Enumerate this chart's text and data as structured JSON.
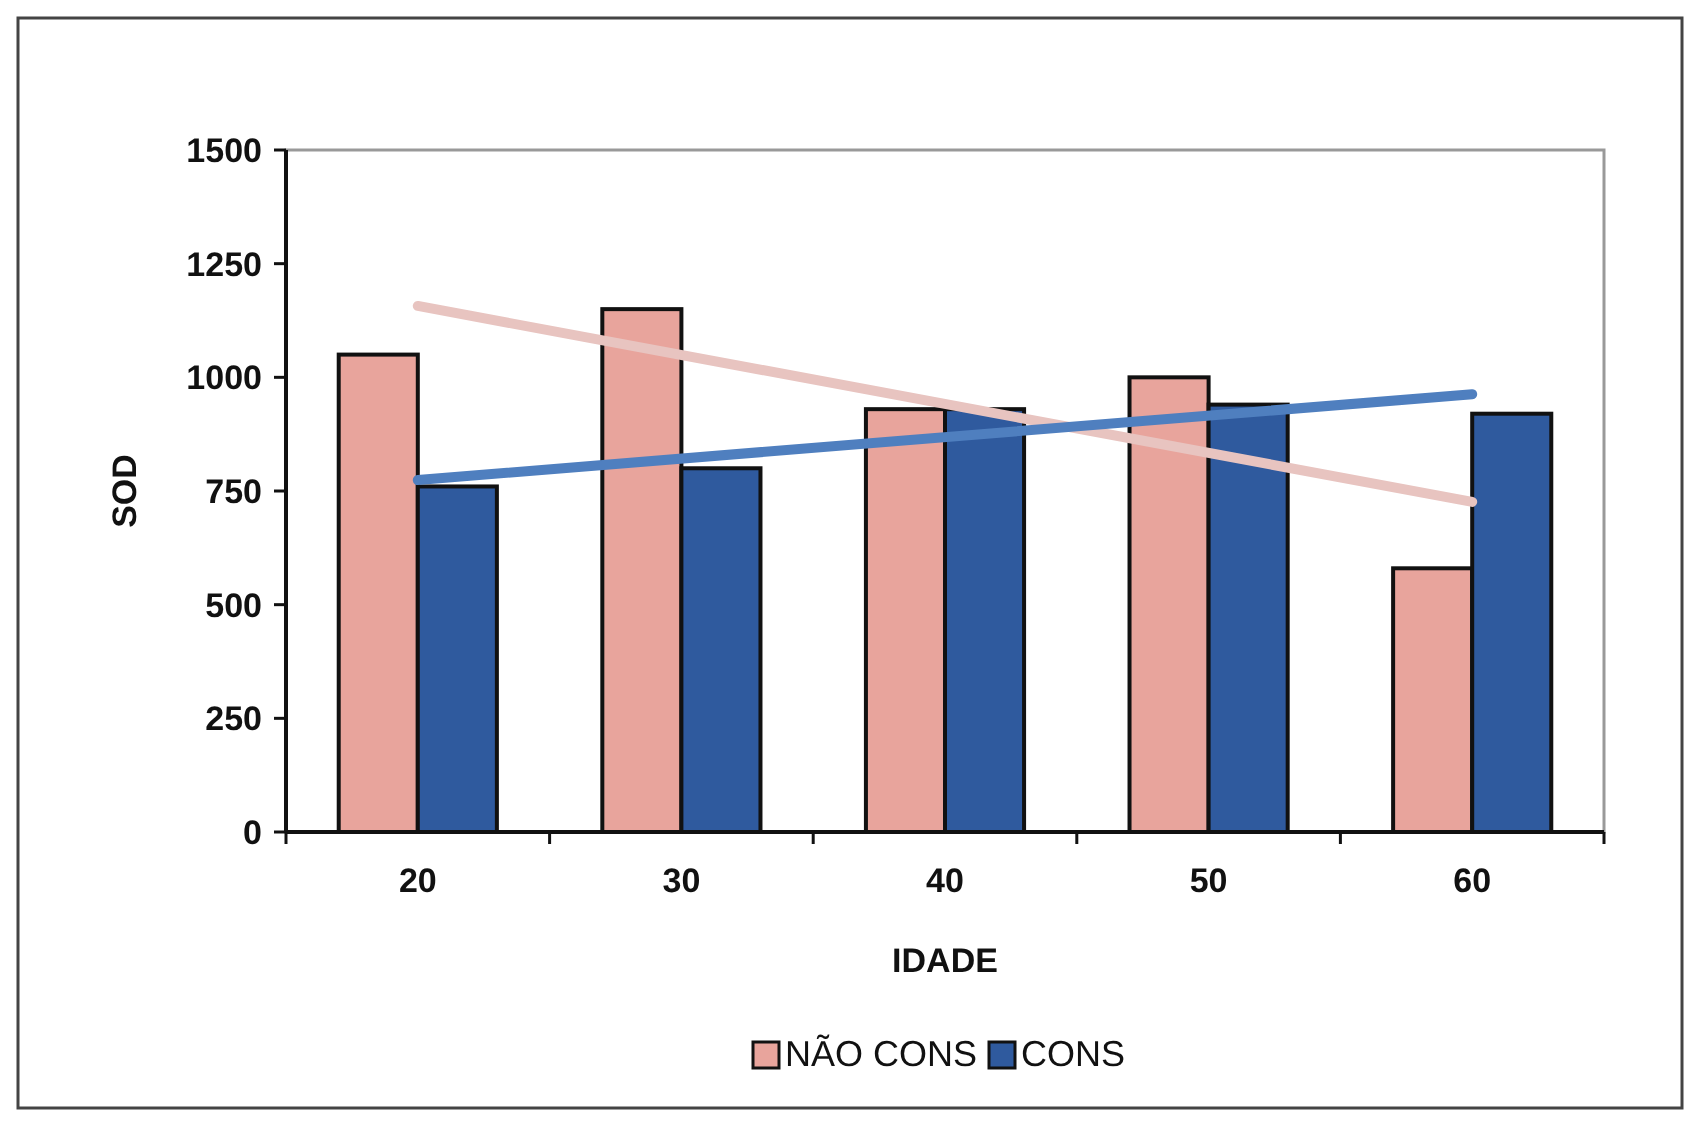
{
  "chart_data": {
    "type": "bar",
    "xlabel": "IDADE",
    "ylabel": "SOD",
    "categories": [
      "20",
      "30",
      "40",
      "50",
      "60"
    ],
    "series": [
      {
        "name": "NÃO CONS",
        "color": "#e8a49c",
        "values": [
          1050,
          1150,
          930,
          1000,
          580
        ]
      },
      {
        "name": "CONS",
        "color": "#2f5a9e",
        "values": [
          760,
          800,
          930,
          940,
          920
        ]
      },
      {
        "type": "line",
        "color": "#e8c4c0",
        "x": [
          "20",
          "60"
        ],
        "values": [
          1157,
          726
        ]
      },
      {
        "type": "line",
        "color": "#4f7fbf",
        "x": [
          "20",
          "60"
        ],
        "values": [
          774,
          963
        ]
      }
    ],
    "ylim": [
      0,
      1500
    ],
    "yticks": [
      0,
      250,
      500,
      750,
      1000,
      1250,
      1500
    ],
    "legend": "bottom",
    "grid": false
  }
}
